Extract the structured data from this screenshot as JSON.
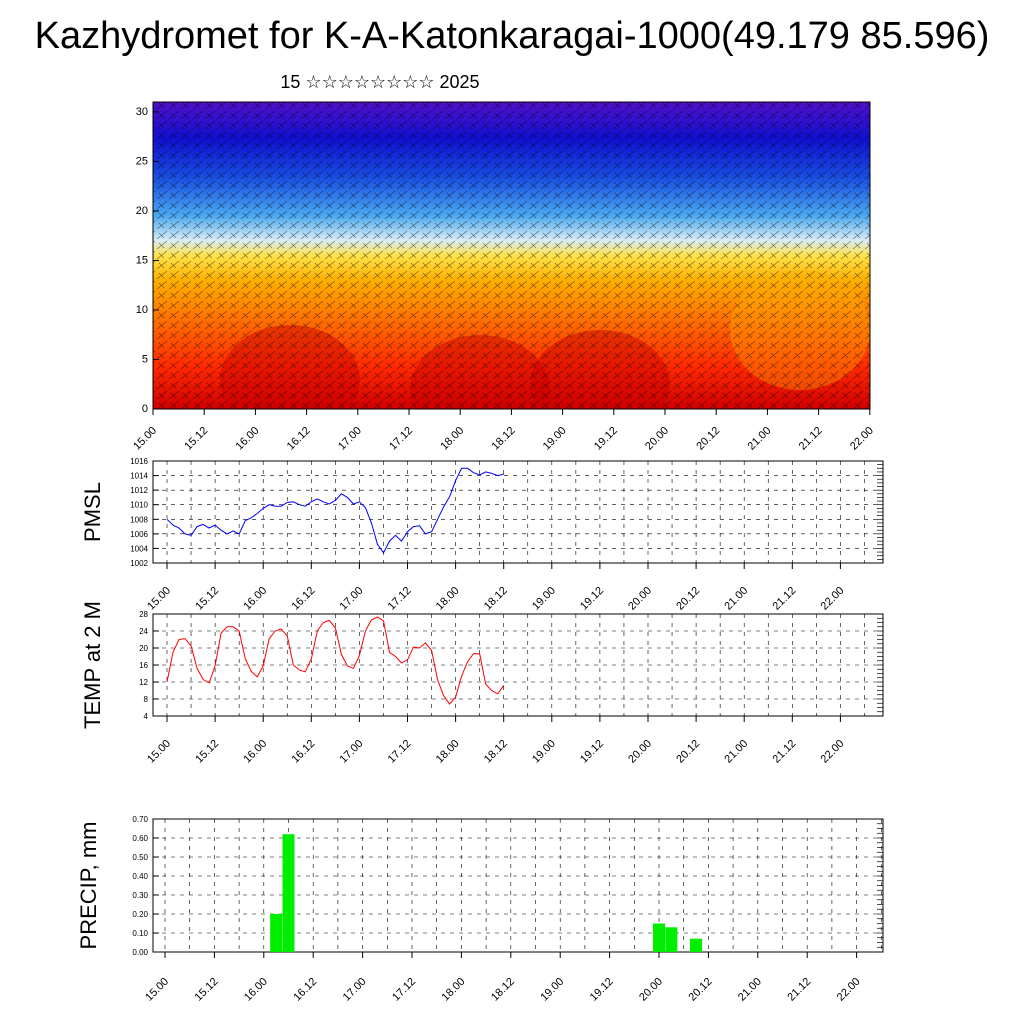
{
  "title": "Kazhydromet for K-A-Katonkaragai-1000(49.179 85.596)",
  "subtitle": "15 ☆☆☆☆☆☆☆☆ 2025",
  "x_ticks": [
    "15.00",
    "15.12",
    "16.00",
    "16.12",
    "17.00",
    "17.12",
    "18.00",
    "18.12",
    "19.00",
    "19.12",
    "20.00",
    "20.12",
    "21.00",
    "21.12",
    "22.00"
  ],
  "chart_data": [
    {
      "type": "heatmap",
      "name": "cross-section",
      "x_range": [
        "15.00",
        "22.00"
      ],
      "ylim": [
        0,
        31
      ],
      "y_ticks": [
        "0",
        "5",
        "10",
        "15",
        "20",
        "25",
        "30"
      ],
      "color_scale": [
        "#c00000",
        "#ff2a00",
        "#ff6a00",
        "#ffb000",
        "#ffe24a",
        "#c8e6f8",
        "#4aa8f0",
        "#1a50e0",
        "#1010d0",
        "#4a10c8"
      ],
      "overlay": "wind barbs"
    },
    {
      "type": "line",
      "ylabel": "PMSL",
      "ylim": [
        1002,
        1016
      ],
      "y_ticks": [
        "1002",
        "1004",
        "1006",
        "1008",
        "1010",
        "1012",
        "1014",
        "1016"
      ],
      "color": "#0000ff",
      "x_step_hours": 3,
      "values": [
        1008,
        1007.2,
        1006.8,
        1006,
        1005.8,
        1007,
        1007.3,
        1006.8,
        1007.2,
        1006.5,
        1006,
        1006.4,
        1006,
        1007.8,
        1008.2,
        1008.8,
        1009.5,
        1010,
        1009.8,
        1009.8,
        1010.3,
        1010.4,
        1010,
        1009.8,
        1010.4,
        1010.8,
        1010.4,
        1010.1,
        1010.6,
        1011.5,
        1011,
        1010.1,
        1010.4,
        1009.6,
        1007.5,
        1004.6,
        1003.4,
        1005,
        1005.8,
        1005,
        1006.3,
        1007,
        1007.1,
        1006,
        1006.3,
        1008,
        1009.7,
        1011.1,
        1013.3,
        1015,
        1015,
        1014.4,
        1014.1,
        1014.5,
        1014.3,
        1014,
        1014.2
      ]
    },
    {
      "type": "line",
      "ylabel": "TEMP at 2 M",
      "ylim": [
        4,
        28
      ],
      "y_ticks": [
        "4",
        "8",
        "12",
        "16",
        "20",
        "24",
        "28"
      ],
      "color": "#ff0000",
      "x_step_hours": 3,
      "values": [
        12,
        19,
        22,
        22.2,
        20.5,
        15.2,
        12.6,
        11.8,
        15.8,
        23.5,
        25,
        25,
        24,
        17.5,
        14.5,
        13.2,
        15.8,
        22.2,
        24,
        24.5,
        22.8,
        16,
        14.8,
        14.4,
        17.4,
        24,
        26,
        26.5,
        24.7,
        18.5,
        15.8,
        15.2,
        18.2,
        24,
        26.6,
        27.3,
        26.4,
        19,
        18,
        16.5,
        17.2,
        20.2,
        20,
        21.2,
        19.4,
        12.5,
        8.8,
        6.8,
        8.4,
        13.4,
        16.8,
        18.7,
        18.6,
        11.5,
        10,
        9.2,
        11.2
      ]
    },
    {
      "type": "bar",
      "ylabel": "PRECIP, mm",
      "ylim": [
        0,
        0.7
      ],
      "y_ticks": [
        "0.00",
        "0.10",
        "0.20",
        "0.30",
        "0.40",
        "0.50",
        "0.60",
        "0.70"
      ],
      "color": "#00ee00",
      "bars": [
        {
          "x": "16.03",
          "value": 0.2
        },
        {
          "x": "16.06",
          "value": 0.62
        },
        {
          "x": "20.00",
          "value": 0.15
        },
        {
          "x": "20.03",
          "value": 0.13
        },
        {
          "x": "20.09",
          "value": 0.07
        }
      ]
    }
  ]
}
